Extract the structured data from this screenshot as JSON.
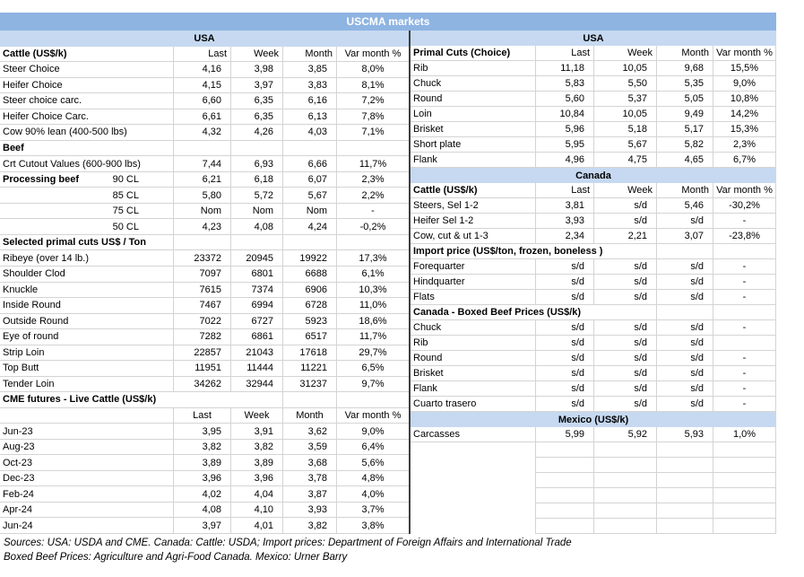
{
  "title": "USCMA markets",
  "colors": {
    "title_bg": "#8eb4e2",
    "band_bg": "#c6d9f1",
    "grid_border": "#d4d4d4",
    "divider": "#3f3f3f",
    "title_text": "#ffffff"
  },
  "footer": {
    "line1": "Sources: USA: USDA and CME. Canada: Cattle: USDA; Import prices: Department of Foreign Affairs and International Trade",
    "line2": "Boxed Beef Prices: Agriculture and Agri-Food Canada. Mexico: Urner Barry"
  },
  "left_table": {
    "rows": [
      {
        "t": "band",
        "l": "USA"
      },
      {
        "t": "header",
        "l": "Cattle (US$/k)",
        "c": [
          "Last",
          "Week",
          "Month",
          "Var month %"
        ]
      },
      {
        "t": "data",
        "l": "Steer Choice",
        "c": [
          "4,16",
          "3,98",
          "3,85",
          "8,0%"
        ]
      },
      {
        "t": "data",
        "l": "Heifer Choice",
        "c": [
          "4,15",
          "3,97",
          "3,83",
          "8,1%"
        ]
      },
      {
        "t": "data",
        "l": "Steer choice carc.",
        "c": [
          "6,60",
          "6,35",
          "6,16",
          "7,2%"
        ]
      },
      {
        "t": "data",
        "l": "Heifer Choice Carc.",
        "c": [
          "6,61",
          "6,35",
          "6,13",
          "7,8%"
        ]
      },
      {
        "t": "data",
        "l": "Cow 90% lean (400-500 lbs)",
        "c": [
          "4,32",
          "4,26",
          "4,03",
          "7,1%"
        ]
      },
      {
        "t": "section",
        "l": "Beef",
        "span": 1
      },
      {
        "t": "data",
        "l": "Crt Cutout Values (600-900 lbs)",
        "c": [
          "7,44",
          "6,93",
          "6,66",
          "11,7%"
        ]
      },
      {
        "t": "data",
        "l": "Processing beef",
        "lb": true,
        "sub": "90 CL",
        "c": [
          "6,21",
          "6,18",
          "6,07",
          "2,3%"
        ]
      },
      {
        "t": "data",
        "l": "",
        "sub": "85 CL",
        "c": [
          "5,80",
          "5,72",
          "5,67",
          "2,2%"
        ]
      },
      {
        "t": "data",
        "l": "",
        "sub": "75 CL",
        "c": [
          "Nom",
          "Nom",
          "Nom",
          "-"
        ]
      },
      {
        "t": "data",
        "l": "",
        "sub": "50 CL",
        "c": [
          "4,23",
          "4,08",
          "4,24",
          "-0,2%"
        ]
      },
      {
        "t": "section",
        "l": "Selected primal cuts US$ / Ton",
        "span": 1
      },
      {
        "t": "data",
        "l": "Ribeye (over 14 lb.)",
        "c": [
          "23372",
          "20945",
          "19922",
          "17,3%"
        ]
      },
      {
        "t": "data",
        "l": "Shoulder Clod",
        "c": [
          "7097",
          "6801",
          "6688",
          "6,1%"
        ]
      },
      {
        "t": "data",
        "l": "Knuckle",
        "c": [
          "7615",
          "7374",
          "6906",
          "10,3%"
        ]
      },
      {
        "t": "data",
        "l": "Inside Round",
        "c": [
          "7467",
          "6994",
          "6728",
          "11,0%"
        ]
      },
      {
        "t": "data",
        "l": "Outside Round",
        "c": [
          "7022",
          "6727",
          "5923",
          "18,6%"
        ]
      },
      {
        "t": "data",
        "l": "Eye of round",
        "c": [
          "7282",
          "6861",
          "6517",
          "11,7%"
        ]
      },
      {
        "t": "data",
        "l": "Strip Loin",
        "c": [
          "22857",
          "21043",
          "17618",
          "29,7%"
        ]
      },
      {
        "t": "data",
        "l": "Top Butt",
        "c": [
          "11951",
          "11444",
          "11221",
          "6,5%"
        ]
      },
      {
        "t": "data",
        "l": "Tender Loin",
        "c": [
          "34262",
          "32944",
          "31237",
          "9,7%"
        ]
      },
      {
        "t": "section",
        "l": "CME futures - Live Cattle (US$/k)",
        "span": 3
      },
      {
        "t": "header2",
        "l": "",
        "c": [
          "Last",
          "Week",
          "Month",
          "Var month %"
        ]
      },
      {
        "t": "data",
        "l": "Jun-23",
        "c": [
          "3,95",
          "3,91",
          "3,62",
          "9,0%"
        ]
      },
      {
        "t": "data",
        "l": "Aug-23",
        "c": [
          "3,82",
          "3,82",
          "3,59",
          "6,4%"
        ]
      },
      {
        "t": "data",
        "l": "Oct-23",
        "c": [
          "3,89",
          "3,89",
          "3,68",
          "5,6%"
        ]
      },
      {
        "t": "data",
        "l": "Dec-23",
        "c": [
          "3,96",
          "3,96",
          "3,78",
          "4,8%"
        ]
      },
      {
        "t": "data",
        "l": "Feb-24",
        "c": [
          "4,02",
          "4,04",
          "3,87",
          "4,0%"
        ]
      },
      {
        "t": "data",
        "l": "Apr-24",
        "c": [
          "4,08",
          "4,10",
          "3,93",
          "3,7%"
        ]
      },
      {
        "t": "data",
        "l": "Jun-24",
        "c": [
          "3,97",
          "4,01",
          "3,82",
          "3,8%"
        ]
      }
    ]
  },
  "right_table": {
    "rows": [
      {
        "t": "band",
        "l": "USA"
      },
      {
        "t": "header",
        "l": "Primal Cuts (Choice)",
        "c": [
          "Last",
          "Week",
          "Month",
          "Var month %"
        ]
      },
      {
        "t": "data",
        "l": "Rib",
        "c": [
          "11,18",
          "10,05",
          "9,68",
          "15,5%"
        ]
      },
      {
        "t": "data",
        "l": "Chuck",
        "c": [
          "5,83",
          "5,50",
          "5,35",
          "9,0%"
        ]
      },
      {
        "t": "data",
        "l": "Round",
        "c": [
          "5,60",
          "5,37",
          "5,05",
          "10,8%"
        ]
      },
      {
        "t": "data",
        "l": "Loin",
        "c": [
          "10,84",
          "10,05",
          "9,49",
          "14,2%"
        ]
      },
      {
        "t": "data",
        "l": "Brisket",
        "c": [
          "5,96",
          "5,18",
          "5,17",
          "15,3%"
        ]
      },
      {
        "t": "data",
        "l": "Short plate",
        "c": [
          "5,95",
          "5,67",
          "5,82",
          "2,3%"
        ]
      },
      {
        "t": "data",
        "l": "Flank",
        "c": [
          "4,96",
          "4,75",
          "4,65",
          "6,7%"
        ]
      },
      {
        "t": "band",
        "l": "Canada"
      },
      {
        "t": "header",
        "l": "Cattle (US$/k)",
        "c": [
          "Last",
          "Week",
          "Month",
          "Var month %"
        ]
      },
      {
        "t": "data",
        "l": "Steers, Sel 1-2",
        "c": [
          "3,81",
          "s/d",
          "5,46",
          "-30,2%"
        ]
      },
      {
        "t": "data",
        "l": "Heifer Sel 1-2",
        "c": [
          "3,93",
          "s/d",
          "s/d",
          "-"
        ]
      },
      {
        "t": "data",
        "l": "Cow, cut & ut 1-3",
        "c": [
          "2,34",
          "2,21",
          "3,07",
          "-23,8%"
        ]
      },
      {
        "t": "section",
        "l": "Import price (US$/ton, frozen, boneless )",
        "span": 3
      },
      {
        "t": "data",
        "l": "Forequarter",
        "c": [
          "s/d",
          "s/d",
          "s/d",
          "-"
        ]
      },
      {
        "t": "data",
        "l": "Hindquarter",
        "c": [
          "s/d",
          "s/d",
          "s/d",
          "-"
        ]
      },
      {
        "t": "data",
        "l": "Flats",
        "c": [
          "s/d",
          "s/d",
          "s/d",
          "-"
        ]
      },
      {
        "t": "section",
        "l": "Canada - Boxed Beef Prices (US$/k)",
        "span": 3
      },
      {
        "t": "data",
        "l": "Chuck",
        "c": [
          "s/d",
          "s/d",
          "s/d",
          "-"
        ]
      },
      {
        "t": "data",
        "l": "Rib",
        "c": [
          "s/d",
          "s/d",
          "s/d",
          ""
        ]
      },
      {
        "t": "data",
        "l": "Round",
        "c": [
          "s/d",
          "s/d",
          "s/d",
          "-"
        ]
      },
      {
        "t": "data",
        "l": "Brisket",
        "c": [
          "s/d",
          "s/d",
          "s/d",
          "-"
        ]
      },
      {
        "t": "data",
        "l": "Flank",
        "c": [
          "s/d",
          "s/d",
          "s/d",
          "-"
        ]
      },
      {
        "t": "data",
        "l": "Cuarto trasero",
        "c": [
          "s/d",
          "s/d",
          "s/d",
          "-"
        ]
      },
      {
        "t": "band",
        "l": "Mexico (US$/k)"
      },
      {
        "t": "data",
        "l": "Carcasses",
        "c": [
          "5,99",
          "5,92",
          "5,93",
          "1,0%"
        ]
      },
      {
        "t": "empty"
      },
      {
        "t": "empty"
      },
      {
        "t": "empty"
      },
      {
        "t": "empty"
      },
      {
        "t": "empty"
      },
      {
        "t": "empty"
      }
    ]
  }
}
